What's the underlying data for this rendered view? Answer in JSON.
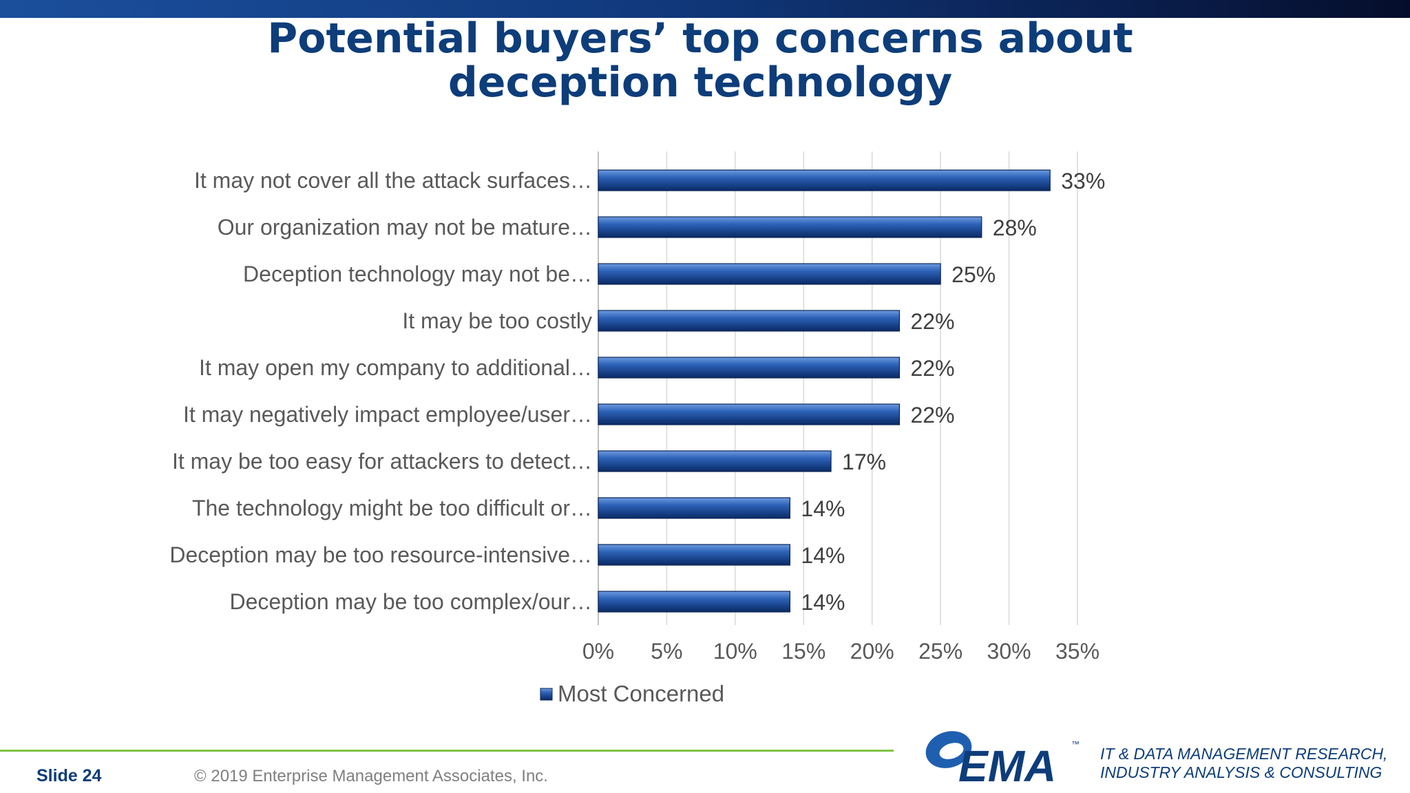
{
  "title": {
    "line1": "Potential buyers’ top concerns about",
    "line2": "deception technology"
  },
  "chart_data": {
    "type": "bar",
    "orientation": "horizontal",
    "categories": [
      "It may not cover all the attack surfaces…",
      "Our organization may not be mature…",
      "Deception technology may not be…",
      "It may be too costly",
      "It may open my company to additional…",
      "It may negatively impact employee/user…",
      "It may be too easy for attackers to detect…",
      "The technology might be too difficult or…",
      "Deception may be too resource-intensive…",
      "Deception may be too complex/our…"
    ],
    "series": [
      {
        "name": "Most Concerned",
        "values": [
          33,
          28,
          25,
          22,
          22,
          22,
          17,
          14,
          14,
          14
        ]
      }
    ],
    "value_labels": [
      "33%",
      "28%",
      "25%",
      "22%",
      "22%",
      "22%",
      "17%",
      "14%",
      "14%",
      "14%"
    ],
    "xlim": [
      0,
      35
    ],
    "xticks": [
      0,
      5,
      10,
      15,
      20,
      25,
      30,
      35
    ],
    "xtick_labels": [
      "0%",
      "5%",
      "10%",
      "15%",
      "20%",
      "25%",
      "30%",
      "35%"
    ],
    "grid": "vertical",
    "legend": "bottom",
    "bar_color": "#1f4e9a"
  },
  "footer": {
    "slide_label": "Slide  24",
    "copyright": "© 2019 Enterprise Management Associates, Inc.",
    "logo_text": "EMA",
    "logo_tm": "™",
    "tagline_line1": "IT & DATA MANAGEMENT RESEARCH,",
    "tagline_line2": "INDUSTRY ANALYSIS & CONSULTING"
  },
  "colors": {
    "title": "#0d3d7a",
    "accent_green": "#7fc241",
    "text_gray": "#595959"
  }
}
